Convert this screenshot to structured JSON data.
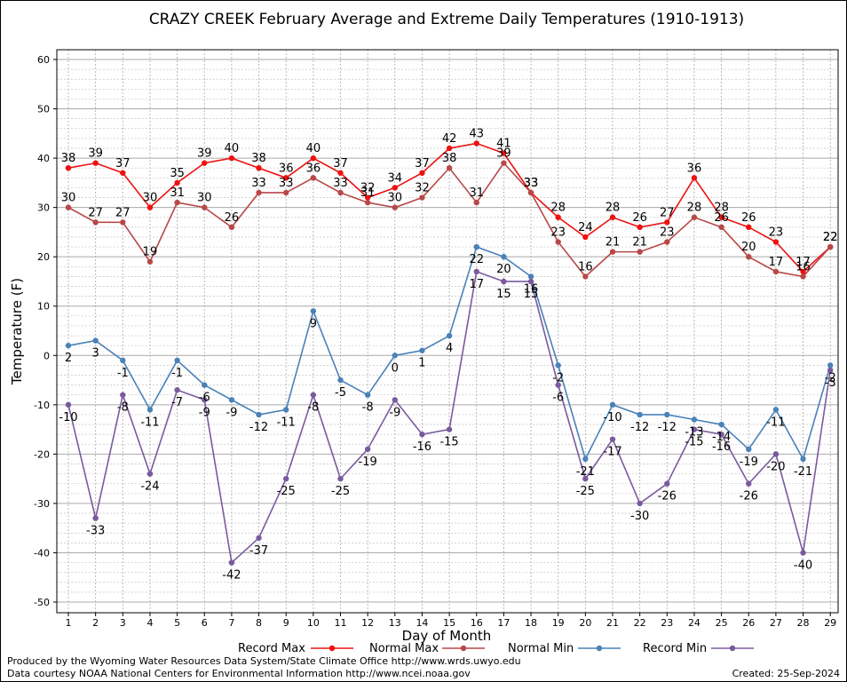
{
  "chart_data": {
    "type": "line",
    "title": "CRAZY CREEK February Average and Extreme Daily Temperatures (1910-1913)",
    "xlabel": "Day of Month",
    "ylabel": "Temperature (F)",
    "x": [
      1,
      2,
      3,
      4,
      5,
      6,
      7,
      8,
      9,
      10,
      11,
      12,
      13,
      14,
      15,
      16,
      17,
      18,
      19,
      20,
      21,
      22,
      23,
      24,
      25,
      26,
      27,
      28,
      29
    ],
    "ylim": [
      -50,
      60
    ],
    "yticks": [
      -50,
      -40,
      -30,
      -20,
      -10,
      0,
      10,
      20,
      30,
      40,
      50,
      60
    ],
    "grid": true,
    "legend_position": "bottom",
    "series": [
      {
        "name": "Record Max",
        "color": "#ee1111",
        "values": [
          38,
          39,
          37,
          30,
          35,
          39,
          40,
          38,
          36,
          40,
          37,
          32,
          34,
          37,
          42,
          43,
          41,
          33,
          28,
          24,
          28,
          26,
          27,
          36,
          28,
          26,
          23,
          17,
          22
        ]
      },
      {
        "name": "Normal Max",
        "color": "#b84848",
        "values": [
          30,
          27,
          27,
          19,
          31,
          30,
          26,
          33,
          33,
          36,
          33,
          31,
          30,
          32,
          38,
          31,
          39,
          33,
          23,
          16,
          21,
          21,
          23,
          28,
          26,
          20,
          17,
          16,
          22
        ]
      },
      {
        "name": "Normal Min",
        "color": "#4a82b8",
        "values": [
          2,
          3,
          -1,
          -11,
          -1,
          -6,
          -9,
          -12,
          -11,
          9,
          -5,
          -8,
          0,
          1,
          4,
          22,
          20,
          16,
          -2,
          -21,
          -10,
          -12,
          -12,
          -13,
          -14,
          -19,
          -11,
          -21,
          -2
        ]
      },
      {
        "name": "Record Min",
        "color": "#7a5a9e",
        "values": [
          -10,
          -33,
          -8,
          -24,
          -7,
          -9,
          -42,
          -37,
          -25,
          -8,
          -25,
          -19,
          -9,
          -16,
          -15,
          17,
          15,
          15,
          -6,
          -25,
          -17,
          -30,
          -26,
          -15,
          -16,
          -26,
          -20,
          -40,
          -3
        ]
      }
    ]
  },
  "footer": {
    "produced_by": "Produced by the Wyoming Water Resources Data System/State Climate Office http://www.wrds.uwyo.edu",
    "data_courtesy": "Data courtesy NOAA National Centers for Environmental Information http://www.ncei.noaa.gov",
    "created": "Created:  25-Sep-2024"
  }
}
